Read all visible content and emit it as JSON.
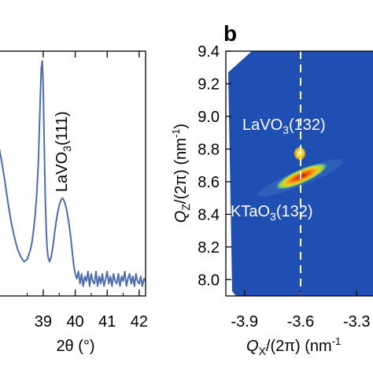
{
  "chart_data": [
    {
      "type": "line",
      "panel": "",
      "xlabel": "2θ (°)",
      "ylabel": "",
      "xlim": [
        37.6,
        42.2
      ],
      "ylim": [
        0,
        1.0
      ],
      "xticks": [
        "39",
        "40",
        "41",
        "42"
      ],
      "xtick_values": [
        39,
        40,
        41,
        42
      ],
      "grid": false,
      "annotations": [
        {
          "text": "LaVO",
          "sub": "3",
          "tail": "(111)",
          "x": 39.65,
          "y": 0.62,
          "rotation": -90
        }
      ],
      "series": [
        {
          "name": "",
          "color": "#4f6cad",
          "x": [
            37.6,
            37.7,
            37.8,
            37.9,
            38.0,
            38.1,
            38.2,
            38.3,
            38.4,
            38.5,
            38.6,
            38.65,
            38.7,
            38.75,
            38.8,
            38.85,
            38.88,
            38.91,
            38.94,
            38.97,
            39.0,
            39.03,
            39.06,
            39.09,
            39.12,
            39.15,
            39.2,
            39.25,
            39.3,
            39.35,
            39.4,
            39.45,
            39.5,
            39.55,
            39.6,
            39.65,
            39.7,
            39.75,
            39.8,
            39.85,
            39.9,
            39.95,
            40.0,
            40.05,
            40.1,
            40.15,
            40.2,
            40.25,
            40.3,
            40.35,
            40.4,
            40.45,
            40.5,
            40.55,
            40.6,
            40.65,
            40.7,
            40.75,
            40.8,
            40.85,
            40.9,
            40.95,
            41.0,
            41.05,
            41.1,
            41.15,
            41.2,
            41.25,
            41.3,
            41.35,
            41.4,
            41.45,
            41.5,
            41.55,
            41.6,
            41.65,
            41.7,
            41.75,
            41.8,
            41.85,
            41.9,
            41.95,
            42.0,
            42.05,
            42.1,
            42.15,
            42.2
          ],
          "y": [
            0.62,
            0.55,
            0.47,
            0.38,
            0.3,
            0.24,
            0.19,
            0.16,
            0.14,
            0.15,
            0.19,
            0.22,
            0.27,
            0.33,
            0.42,
            0.55,
            0.68,
            0.82,
            0.93,
            0.96,
            0.86,
            0.64,
            0.42,
            0.28,
            0.2,
            0.16,
            0.14,
            0.16,
            0.2,
            0.25,
            0.3,
            0.34,
            0.37,
            0.39,
            0.4,
            0.39,
            0.37,
            0.34,
            0.3,
            0.25,
            0.19,
            0.13,
            0.09,
            0.07,
            0.1,
            0.05,
            0.09,
            0.04,
            0.08,
            0.06,
            0.1,
            0.04,
            0.09,
            0.06,
            0.05,
            0.1,
            0.04,
            0.08,
            0.05,
            0.09,
            0.04,
            0.07,
            0.1,
            0.05,
            0.08,
            0.04,
            0.09,
            0.06,
            0.05,
            0.09,
            0.04,
            0.08,
            0.06,
            0.1,
            0.04,
            0.07,
            0.09,
            0.05,
            0.08,
            0.04,
            0.09,
            0.06,
            0.05,
            0.08,
            0.04,
            0.07,
            0.06
          ]
        }
      ]
    },
    {
      "type": "heatmap",
      "panel": "b",
      "xlabel_main": "Q",
      "xlabel_sub": "X",
      "xlabel_tail": "/(2π) (nm",
      "xlabel_sup": "-1",
      "ylabel_main": "Q",
      "ylabel_sub": "Z",
      "ylabel_tail": "/(2π) (nm",
      "ylabel_sup": "-1",
      "ylabel_end": ")",
      "xlim": [
        -4.0,
        -3.2
      ],
      "ylim": [
        7.9,
        9.4
      ],
      "xticks": [
        "-3.9",
        "-3.6",
        "-3.3"
      ],
      "xtick_values": [
        -3.9,
        -3.6,
        -3.3
      ],
      "yticks": [
        "8.0",
        "8.2",
        "8.4",
        "8.6",
        "8.8",
        "9.0",
        "9.2",
        "9.4"
      ],
      "ytick_values": [
        8.0,
        8.2,
        8.4,
        8.6,
        8.8,
        9.0,
        9.2,
        9.4
      ],
      "background_color": "#1f4fb3",
      "dashed_line_x": -3.6,
      "peaks": [
        {
          "label": "LaVO",
          "sub": "3",
          "tail": "(132)",
          "qx": -3.6,
          "qz": 8.79
        },
        {
          "label": "KTaO",
          "sub": "3",
          "tail": "(132)",
          "qx": -3.6,
          "qz": 8.66
        }
      ]
    }
  ]
}
